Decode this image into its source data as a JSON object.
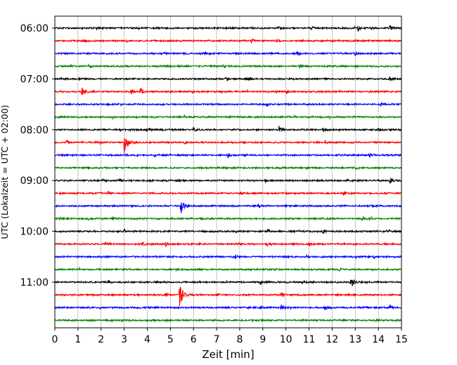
{
  "chart_data": {
    "type": "line",
    "xlabel": "Zeit  [min]",
    "ylabel": "UTC (Lokalzeit = UTC + 02:00)",
    "xlim": [
      0,
      15
    ],
    "x_ticks": [
      0,
      1,
      2,
      3,
      4,
      5,
      6,
      7,
      8,
      9,
      10,
      11,
      12,
      13,
      14,
      15
    ],
    "y_tick_labels": [
      "06:00",
      "07:00",
      "08:00",
      "09:00",
      "10:00",
      "11:00"
    ],
    "trace_interval_min": 15,
    "grid_vertical": true,
    "colors": [
      "#000000",
      "#ff0000",
      "#0000ff",
      "#008000"
    ],
    "traces": [
      {
        "start": "06:00",
        "events": [
          {
            "t": 13.1,
            "a": 0.55
          },
          {
            "t": 14.5,
            "a": 0.6
          },
          {
            "t": 9.7,
            "a": 0.25
          },
          {
            "t": 11.1,
            "a": 0.25
          }
        ]
      },
      {
        "start": "06:15",
        "events": [
          {
            "t": 1.3,
            "a": 0.25
          },
          {
            "t": 8.5,
            "a": 0.3
          },
          {
            "t": 9.6,
            "a": 0.25
          }
        ]
      },
      {
        "start": "06:30",
        "events": [
          {
            "t": 4.8,
            "a": 0.3
          },
          {
            "t": 10.5,
            "a": 0.3
          },
          {
            "t": 13.0,
            "a": 0.35
          }
        ]
      },
      {
        "start": "06:45",
        "events": [
          {
            "t": 7.3,
            "a": 0.25
          },
          {
            "t": 10.6,
            "a": 0.25
          }
        ]
      },
      {
        "start": "07:00",
        "events": [
          {
            "t": 7.4,
            "a": 0.35
          },
          {
            "t": 8.4,
            "a": 0.35
          },
          {
            "t": 14.5,
            "a": 0.35
          }
        ]
      },
      {
        "start": "07:15",
        "events": [
          {
            "t": 1.15,
            "a": 1.0
          },
          {
            "t": 3.7,
            "a": 0.6
          },
          {
            "t": 3.3,
            "a": 0.35
          },
          {
            "t": 10.0,
            "a": 0.35
          }
        ]
      },
      {
        "start": "07:30",
        "events": [
          {
            "t": 9.2,
            "a": 0.3
          },
          {
            "t": 14.1,
            "a": 0.25
          }
        ]
      },
      {
        "start": "07:45",
        "events": [
          {
            "t": 2.5,
            "a": 0.2
          },
          {
            "t": 5.6,
            "a": 0.2
          }
        ]
      },
      {
        "start": "08:00",
        "events": [
          {
            "t": 9.7,
            "a": 0.6
          },
          {
            "t": 11.6,
            "a": 0.4
          },
          {
            "t": 14.0,
            "a": 0.35
          },
          {
            "t": 4.0,
            "a": 0.35
          },
          {
            "t": 6.0,
            "a": 0.3
          }
        ]
      },
      {
        "start": "08:15",
        "events": [
          {
            "t": 3.0,
            "a": 1.7
          },
          {
            "t": 0.5,
            "a": 0.35
          },
          {
            "t": 11.7,
            "a": 0.3
          },
          {
            "t": 5.6,
            "a": 0.25
          }
        ]
      },
      {
        "start": "08:30",
        "events": [
          {
            "t": 7.5,
            "a": 0.35
          },
          {
            "t": 13.6,
            "a": 0.4
          },
          {
            "t": 4.3,
            "a": 0.25
          }
        ]
      },
      {
        "start": "08:45",
        "events": [
          {
            "t": 10.9,
            "a": 0.2
          },
          {
            "t": 13.0,
            "a": 0.2
          }
        ]
      },
      {
        "start": "09:00",
        "events": [
          {
            "t": 14.5,
            "a": 0.5
          },
          {
            "t": 9.1,
            "a": 0.3
          },
          {
            "t": 2.8,
            "a": 0.25
          }
        ]
      },
      {
        "start": "09:15",
        "events": [
          {
            "t": 12.5,
            "a": 0.35
          },
          {
            "t": 2.3,
            "a": 0.3
          },
          {
            "t": 8.0,
            "a": 0.3
          }
        ]
      },
      {
        "start": "09:30",
        "events": [
          {
            "t": 5.45,
            "a": 1.2
          },
          {
            "t": 8.8,
            "a": 0.35
          },
          {
            "t": 12.3,
            "a": 0.25
          }
        ]
      },
      {
        "start": "09:45",
        "events": [
          {
            "t": 0.2,
            "a": 0.35
          },
          {
            "t": 13.3,
            "a": 0.4
          },
          {
            "t": 2.5,
            "a": 0.25
          }
        ]
      },
      {
        "start": "10:00",
        "events": [
          {
            "t": 9.2,
            "a": 0.3
          },
          {
            "t": 11.6,
            "a": 0.3
          },
          {
            "t": 3.0,
            "a": 0.25
          }
        ]
      },
      {
        "start": "10:15",
        "events": [
          {
            "t": 2.2,
            "a": 0.4
          },
          {
            "t": 3.8,
            "a": 0.35
          },
          {
            "t": 4.8,
            "a": 0.3
          },
          {
            "t": 9.2,
            "a": 0.35
          },
          {
            "t": 11.0,
            "a": 0.3
          }
        ]
      },
      {
        "start": "10:30",
        "events": [
          {
            "t": 7.8,
            "a": 0.3
          },
          {
            "t": 10.9,
            "a": 0.3
          }
        ]
      },
      {
        "start": "10:45",
        "events": [
          {
            "t": 5.2,
            "a": 0.25
          },
          {
            "t": 9.5,
            "a": 0.25
          },
          {
            "t": 12.3,
            "a": 0.25
          }
        ]
      },
      {
        "start": "11:00",
        "events": [
          {
            "t": 12.8,
            "a": 1.1
          },
          {
            "t": 8.9,
            "a": 0.45
          },
          {
            "t": 2.3,
            "a": 0.3
          },
          {
            "t": 10.7,
            "a": 0.35
          },
          {
            "t": 4.4,
            "a": 0.25
          }
        ]
      },
      {
        "start": "11:15",
        "events": [
          {
            "t": 5.4,
            "a": 1.7
          },
          {
            "t": 4.8,
            "a": 0.45
          },
          {
            "t": 9.8,
            "a": 0.4
          },
          {
            "t": 7.0,
            "a": 0.3
          }
        ]
      },
      {
        "start": "11:30",
        "events": [
          {
            "t": 9.8,
            "a": 0.6
          },
          {
            "t": 14.5,
            "a": 0.45
          },
          {
            "t": 11.7,
            "a": 0.35
          },
          {
            "t": 8.9,
            "a": 0.3
          }
        ]
      },
      {
        "start": "11:45",
        "events": [
          {
            "t": 4.8,
            "a": 0.2
          },
          {
            "t": 10.7,
            "a": 0.2
          },
          {
            "t": 13.9,
            "a": 0.2
          }
        ]
      }
    ]
  }
}
